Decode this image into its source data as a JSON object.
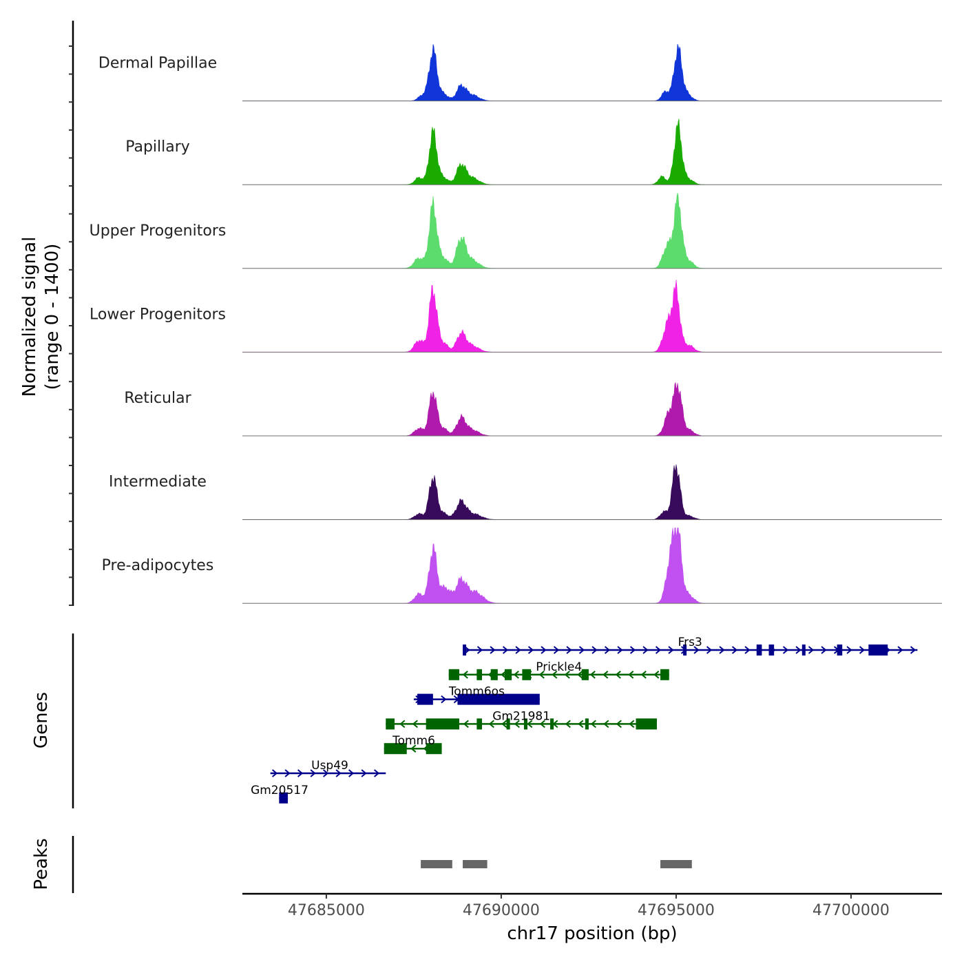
{
  "chart_data": {
    "type": "area",
    "title": "",
    "xlabel": "chr17 position (bp)",
    "ylabel": "Normalized signal",
    "ylabel_range": "(range 0 - 1400)",
    "ylim": [
      0,
      1400
    ],
    "xlim": [
      47682600,
      47702600
    ],
    "x_ticks": [
      47685000,
      47690000,
      47695000,
      47700000
    ],
    "x_tick_labels": [
      "47685000",
      "47690000",
      "47695000",
      "47700000"
    ],
    "series": [
      {
        "name": "Dermal Papillae",
        "color": "#1035d8",
        "peaks": [
          {
            "center": 47688050,
            "width": 110,
            "height": 1060
          },
          {
            "center": 47687750,
            "width": 120,
            "height": 120
          },
          {
            "center": 47688350,
            "width": 130,
            "height": 150
          },
          {
            "center": 47688850,
            "width": 130,
            "height": 290
          },
          {
            "center": 47689150,
            "width": 200,
            "height": 130
          },
          {
            "center": 47694700,
            "width": 110,
            "height": 200
          },
          {
            "center": 47695050,
            "width": 110,
            "height": 1080
          },
          {
            "center": 47695300,
            "width": 140,
            "height": 150
          }
        ]
      },
      {
        "name": "Papillary",
        "color": "#1aab00",
        "peaks": [
          {
            "center": 47688050,
            "width": 110,
            "height": 1100
          },
          {
            "center": 47687650,
            "width": 120,
            "height": 150
          },
          {
            "center": 47688350,
            "width": 130,
            "height": 150
          },
          {
            "center": 47688850,
            "width": 130,
            "height": 390
          },
          {
            "center": 47689150,
            "width": 200,
            "height": 150
          },
          {
            "center": 47694600,
            "width": 110,
            "height": 170
          },
          {
            "center": 47695050,
            "width": 110,
            "height": 1220
          },
          {
            "center": 47695350,
            "width": 140,
            "height": 120
          }
        ]
      },
      {
        "name": "Upper Progenitors",
        "color": "#5cdc6c",
        "peaks": [
          {
            "center": 47688050,
            "width": 110,
            "height": 1320
          },
          {
            "center": 47687650,
            "width": 140,
            "height": 220
          },
          {
            "center": 47688350,
            "width": 130,
            "height": 220
          },
          {
            "center": 47688850,
            "width": 130,
            "height": 600
          },
          {
            "center": 47689150,
            "width": 200,
            "height": 180
          },
          {
            "center": 47694750,
            "width": 130,
            "height": 480
          },
          {
            "center": 47695050,
            "width": 110,
            "height": 1420
          },
          {
            "center": 47695350,
            "width": 140,
            "height": 170
          }
        ]
      },
      {
        "name": "Lower Progenitors",
        "color": "#f022e6",
        "peaks": [
          {
            "center": 47688050,
            "width": 110,
            "height": 1310
          },
          {
            "center": 47687650,
            "width": 130,
            "height": 250
          },
          {
            "center": 47688350,
            "width": 130,
            "height": 190
          },
          {
            "center": 47688850,
            "width": 130,
            "height": 370
          },
          {
            "center": 47689150,
            "width": 200,
            "height": 140
          },
          {
            "center": 47694750,
            "width": 130,
            "height": 560
          },
          {
            "center": 47695000,
            "width": 110,
            "height": 1220
          },
          {
            "center": 47695350,
            "width": 150,
            "height": 150
          }
        ]
      },
      {
        "name": "Reticular",
        "color": "#b01aac",
        "peaks": [
          {
            "center": 47688050,
            "width": 110,
            "height": 930
          },
          {
            "center": 47687650,
            "width": 130,
            "height": 160
          },
          {
            "center": 47688350,
            "width": 130,
            "height": 150
          },
          {
            "center": 47688850,
            "width": 130,
            "height": 350
          },
          {
            "center": 47689150,
            "width": 200,
            "height": 130
          },
          {
            "center": 47694800,
            "width": 130,
            "height": 480
          },
          {
            "center": 47695050,
            "width": 110,
            "height": 1000
          },
          {
            "center": 47695350,
            "width": 150,
            "height": 130
          }
        ]
      },
      {
        "name": "Intermediate",
        "color": "#380a5c",
        "peaks": [
          {
            "center": 47688050,
            "width": 110,
            "height": 900
          },
          {
            "center": 47687650,
            "width": 130,
            "height": 120
          },
          {
            "center": 47688350,
            "width": 130,
            "height": 130
          },
          {
            "center": 47688850,
            "width": 140,
            "height": 360
          },
          {
            "center": 47689200,
            "width": 220,
            "height": 120
          },
          {
            "center": 47694650,
            "width": 110,
            "height": 160
          },
          {
            "center": 47695000,
            "width": 110,
            "height": 1150
          },
          {
            "center": 47695350,
            "width": 150,
            "height": 80
          }
        ]
      },
      {
        "name": "Pre-adipocytes",
        "color": "#c050f0",
        "peaks": [
          {
            "center": 47688050,
            "width": 110,
            "height": 1150
          },
          {
            "center": 47687650,
            "width": 130,
            "height": 200
          },
          {
            "center": 47688400,
            "width": 140,
            "height": 330
          },
          {
            "center": 47688850,
            "width": 150,
            "height": 470
          },
          {
            "center": 47689250,
            "width": 220,
            "height": 240
          },
          {
            "center": 47694850,
            "width": 130,
            "height": 950
          },
          {
            "center": 47695050,
            "width": 110,
            "height": 1300
          },
          {
            "center": 47695350,
            "width": 150,
            "height": 180
          }
        ]
      }
    ]
  },
  "genes_panel": {
    "ylabel": "Genes",
    "genes": [
      {
        "name": "Frs3",
        "row": 0,
        "strand": "+",
        "color": "#00008b",
        "start": 47688900,
        "end": 47701900,
        "exons": [
          [
            47688900,
            47688960
          ],
          [
            47695200,
            47695260
          ],
          [
            47697300,
            47697450
          ],
          [
            47697650,
            47697800
          ],
          [
            47698600,
            47698660
          ],
          [
            47699600,
            47699750
          ],
          [
            47700500,
            47701050
          ]
        ]
      },
      {
        "name": "Prickle4",
        "row": 1,
        "strand": "-",
        "color": "#006400",
        "start": 47688500,
        "end": 47694800,
        "exons": [
          [
            47688500,
            47688800
          ],
          [
            47689300,
            47689450
          ],
          [
            47689700,
            47689900
          ],
          [
            47690100,
            47690300
          ],
          [
            47690600,
            47690850
          ],
          [
            47692300,
            47692500
          ],
          [
            47694550,
            47694800
          ]
        ]
      },
      {
        "name": "Tomm6os",
        "row": 2,
        "strand": "+",
        "color": "#00008b",
        "start": 47687500,
        "end": 47691100,
        "exons": [
          [
            47687600,
            47688050
          ],
          [
            47688750,
            47691100
          ]
        ]
      },
      {
        "name": "Gm21981",
        "row": 3,
        "strand": "-",
        "color": "#006400",
        "start": 47686700,
        "end": 47694450,
        "exons": [
          [
            47686700,
            47686950
          ],
          [
            47687850,
            47688800
          ],
          [
            47689300,
            47689450
          ],
          [
            47690150,
            47690250
          ],
          [
            47690650,
            47690750
          ],
          [
            47691400,
            47691500
          ],
          [
            47692400,
            47692500
          ],
          [
            47693850,
            47694450
          ]
        ]
      },
      {
        "name": "Tomm6",
        "row": 4,
        "strand": "-",
        "color": "#006400",
        "start": 47686650,
        "end": 47688300,
        "exons": [
          [
            47686650,
            47687300
          ],
          [
            47687850,
            47688300
          ]
        ]
      },
      {
        "name": "Usp49",
        "row": 5,
        "strand": "+",
        "color": "#00008b",
        "start": 47683400,
        "end": 47686700,
        "exons": []
      },
      {
        "name": "Gm20517",
        "row": 6,
        "strand": "+",
        "color": "#00008b",
        "start": 47683650,
        "end": 47683900,
        "exons": [
          [
            47683650,
            47683900
          ]
        ]
      }
    ]
  },
  "peaks_panel": {
    "ylabel": "Peaks",
    "color": "#666666",
    "regions": [
      [
        47687700,
        47688600
      ],
      [
        47688900,
        47689600
      ],
      [
        47694550,
        47695450
      ]
    ]
  }
}
